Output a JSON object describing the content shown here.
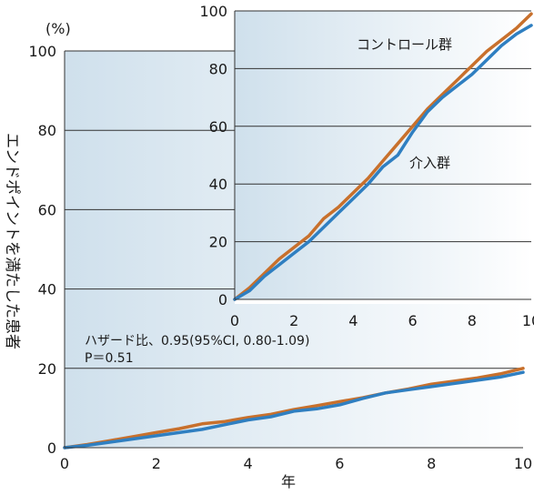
{
  "chart_data": [
    {
      "type": "line",
      "role": "main",
      "ylabel": "エンドポイントを満たした患者",
      "yunit": "(%)",
      "xlabel": "年",
      "xlim": [
        0,
        10
      ],
      "ylim": [
        0,
        100
      ],
      "xticks": [
        0,
        2,
        4,
        6,
        8,
        10
      ],
      "yticks": [
        0,
        20,
        40,
        60,
        80,
        100
      ],
      "grid": "horizontal",
      "annotation_lines": [
        "ハザード比、0.95(95%CI, 0.80-1.09)",
        "P＝0.51"
      ],
      "series": [
        {
          "color": "#c8702c",
          "x": [
            0,
            0.5,
            1,
            1.5,
            2,
            2.5,
            3,
            3.5,
            4,
            4.5,
            5,
            5.5,
            6,
            6.5,
            7,
            7.5,
            8,
            8.5,
            9,
            9.5,
            10
          ],
          "y": [
            0,
            0.8,
            1.8,
            2.8,
            3.8,
            4.8,
            6.0,
            6.6,
            7.6,
            8.4,
            9.6,
            10.6,
            11.6,
            12.6,
            13.8,
            14.8,
            16.0,
            16.8,
            17.6,
            18.6,
            20.0
          ]
        },
        {
          "color": "#2f7fc1",
          "x": [
            0,
            0.5,
            1,
            1.5,
            2,
            2.5,
            3,
            3.5,
            4,
            4.5,
            5,
            5.5,
            6,
            6.5,
            7,
            7.5,
            8,
            8.5,
            9,
            9.5,
            10
          ],
          "y": [
            0,
            0.6,
            1.4,
            2.2,
            3.0,
            3.8,
            4.6,
            5.8,
            7.0,
            7.8,
            9.2,
            9.8,
            10.8,
            12.4,
            13.8,
            14.6,
            15.4,
            16.2,
            17.0,
            17.8,
            19.0
          ]
        }
      ]
    },
    {
      "type": "line",
      "role": "inset",
      "xlim": [
        0,
        10
      ],
      "ylim": [
        0,
        100
      ],
      "xticks": [
        0,
        2,
        4,
        6,
        8,
        10
      ],
      "yticks": [
        0,
        20,
        40,
        60,
        80,
        100
      ],
      "grid": "horizontal",
      "series": [
        {
          "name": "コントロール群",
          "color": "#c8702c",
          "x": [
            0,
            0.5,
            1,
            1.5,
            2,
            2.5,
            3,
            3.5,
            4,
            4.5,
            5,
            5.5,
            6,
            6.5,
            7,
            7.5,
            8,
            8.5,
            9,
            9.5,
            10
          ],
          "y": [
            0,
            4,
            9,
            14,
            18,
            22,
            28,
            32,
            37,
            42,
            48,
            54,
            60,
            66,
            71,
            76,
            81,
            86,
            90,
            94,
            99
          ]
        },
        {
          "name": "介入群",
          "color": "#2f7fc1",
          "x": [
            0,
            0.5,
            1,
            1.5,
            2,
            2.5,
            3,
            3.5,
            4,
            4.5,
            5,
            5.5,
            6,
            6.5,
            7,
            7.5,
            8,
            8.5,
            9,
            9.5,
            10
          ],
          "y": [
            0,
            3,
            8,
            12,
            16,
            20,
            25,
            30,
            35,
            40,
            46,
            50,
            58,
            65,
            70,
            74,
            78,
            83,
            88,
            92,
            95
          ]
        }
      ]
    }
  ]
}
